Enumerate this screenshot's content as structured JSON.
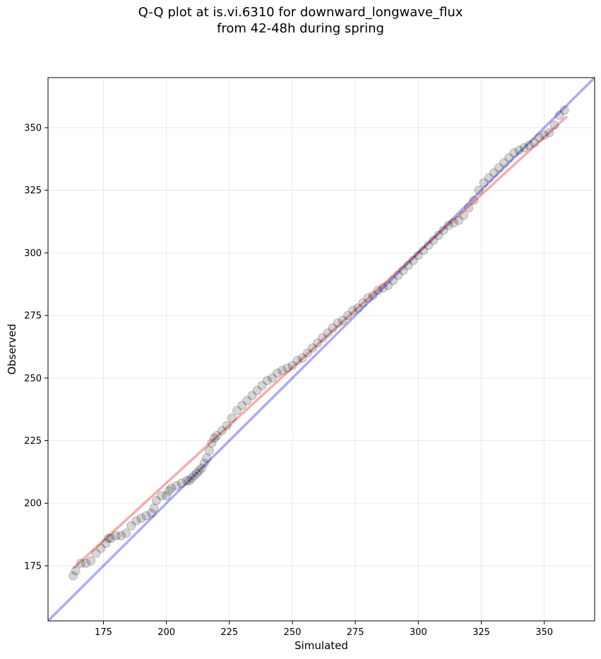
{
  "chart_data": {
    "type": "scatter",
    "title_line1": "Q-Q plot at is.vi.6310 for downward_longwave_flux",
    "title_line2": "from 42-48h during spring",
    "xlabel": "Simulated",
    "ylabel": "Observed",
    "xlim": [
      153,
      370
    ],
    "ylim": [
      153,
      370
    ],
    "x_ticks": [
      175,
      200,
      225,
      250,
      275,
      300,
      325,
      350
    ],
    "y_ticks": [
      175,
      200,
      225,
      250,
      275,
      300,
      325,
      350
    ],
    "grid": true,
    "reference_line": {
      "color": "#0000ee",
      "description": "1:1",
      "x": [
        153,
        370
      ],
      "y": [
        153,
        370
      ]
    },
    "fit_line": {
      "color": "#ee0000",
      "x": [
        163,
        359
      ],
      "y": [
        174,
        354.5
      ]
    },
    "quantiles": {
      "x": [
        163,
        164,
        166,
        168,
        170,
        172,
        174,
        176,
        177,
        178,
        180,
        182,
        184,
        186,
        188,
        190,
        192,
        194,
        195,
        196,
        198,
        200,
        201,
        202,
        204,
        206,
        208,
        209,
        210,
        211,
        212,
        213,
        214,
        215,
        216,
        217,
        218,
        219,
        220,
        222,
        224,
        226,
        228,
        230,
        232,
        234,
        236,
        238,
        240,
        242,
        244,
        246,
        248,
        250,
        252,
        254,
        256,
        258,
        260,
        262,
        264,
        266,
        268,
        270,
        272,
        274,
        276,
        278,
        280,
        282,
        284,
        286,
        288,
        290,
        292,
        294,
        296,
        298,
        300,
        302,
        304,
        306,
        308,
        310,
        312,
        314,
        316,
        318,
        320,
        322,
        324,
        326,
        328,
        330,
        332,
        334,
        336,
        338,
        340,
        342,
        344,
        346,
        348,
        350,
        352,
        354,
        356,
        358
      ],
      "y": [
        171,
        173,
        176,
        176,
        177,
        180,
        182,
        184,
        186,
        186,
        187,
        187,
        188,
        191,
        193,
        194,
        195,
        196,
        198,
        201,
        203,
        203,
        205,
        206,
        207,
        208,
        209,
        209,
        210,
        211,
        212,
        213,
        214,
        216,
        218,
        221,
        224,
        226,
        227,
        229,
        231,
        234,
        237,
        239,
        241,
        243,
        245,
        247,
        249,
        250,
        252,
        253,
        254,
        255,
        257,
        258,
        260,
        262,
        264,
        266,
        268,
        270,
        272,
        273,
        275,
        277,
        278,
        280,
        282,
        283,
        285,
        286,
        287,
        289,
        291,
        293,
        295,
        297,
        299,
        301,
        303,
        305,
        307,
        309,
        311,
        312,
        313,
        315,
        318,
        321,
        325,
        328,
        330,
        332,
        334,
        336,
        338,
        340,
        341,
        342,
        343,
        344,
        346,
        347,
        348,
        351,
        355,
        357
      ]
    }
  }
}
